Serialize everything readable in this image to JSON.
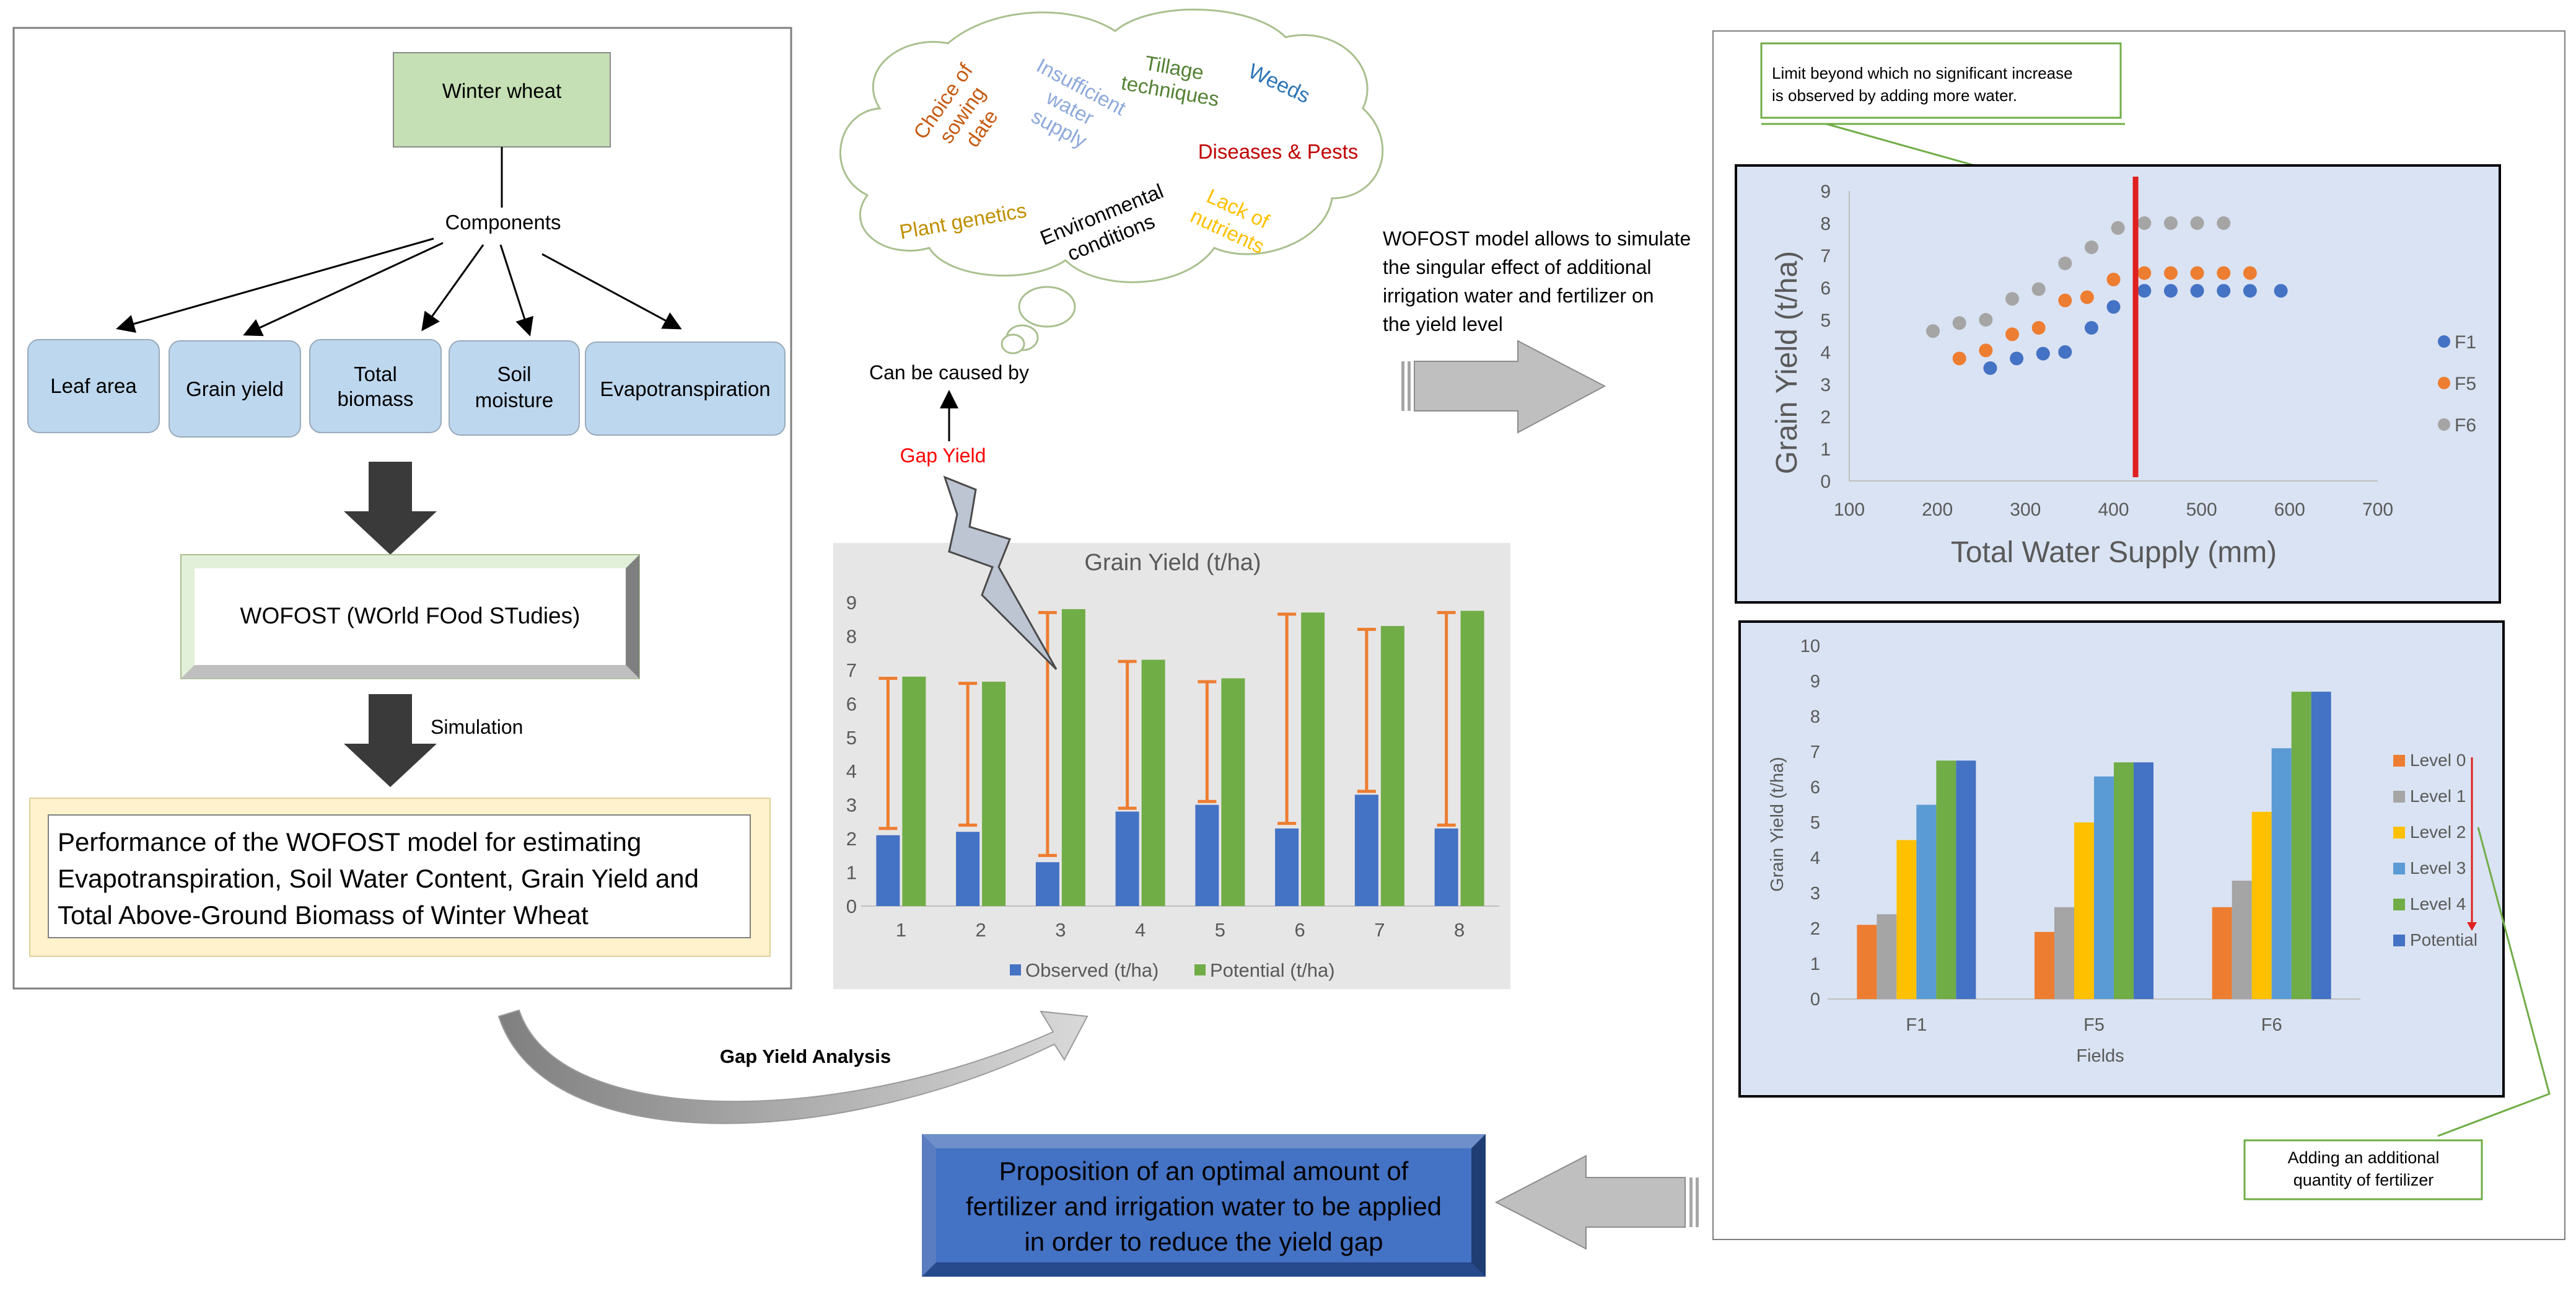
{
  "left_panel": {
    "winter_wheat": "Winter wheat",
    "components": "Components",
    "boxes": [
      "Leaf area",
      "Grain yield",
      "Total\nbiomass",
      "Soil\nmoisture",
      "Evapotranspiration"
    ],
    "wofost": "WOFOST (WOrld FOod STudies)",
    "simulation": "Simulation",
    "performance": [
      "Performance of the WOFOST model for estimating",
      "Evapotranspiration, Soil Water Content, Grain Yield and",
      "Total Above-Ground Biomass of Winter Wheat"
    ]
  },
  "cloud": {
    "words": [
      {
        "text": "Choice of\nsowing\ndate",
        "color": "#C55A11"
      },
      {
        "text": "Insufficient\nwater\nsupply",
        "color": "#8EA9DB"
      },
      {
        "text": "Tillage\ntechniques",
        "color": "#548235"
      },
      {
        "text": "Weeds",
        "color": "#2E75B6"
      },
      {
        "text": "Diseases & Pests",
        "color": "#C00000"
      },
      {
        "text": "Plant genetics",
        "color": "#BF8F00"
      },
      {
        "text": "Environmental\nconditions",
        "color": "#000000"
      },
      {
        "text": "Lack of\nnutrients",
        "color": "#FFC000"
      }
    ],
    "caused_by": "Can be caused by",
    "gap_yield": "Gap Yield",
    "gap_yield_color": "#FF0000"
  },
  "wofost_note": [
    "WOFOST model allows to simulate",
    "the singular effect of additional",
    "irrigation water and fertilizer on",
    "the yield level"
  ],
  "gap_analysis": "Gap Yield Analysis",
  "proposition": [
    "Proposition of an optimal amount of",
    "fertilizer and irrigation water to be applied",
    "in order to reduce the yield gap"
  ],
  "callout_limit": [
    "Limit beyond which no significant increase",
    "is observed by adding more water."
  ],
  "callout_fertilizer": [
    "Adding an additional",
    "quantity of fertilizer"
  ],
  "chart_data": [
    {
      "type": "bar",
      "title": "Grain Yield (t/ha)",
      "categories": [
        "1",
        "2",
        "3",
        "4",
        "5",
        "6",
        "7",
        "8"
      ],
      "ylim": [
        0,
        9
      ],
      "yticks": [
        "0",
        "1",
        "2",
        "3",
        "4",
        "5",
        "6",
        "7",
        "8",
        "9"
      ],
      "series": [
        {
          "name": "Observed (t/ha)",
          "color": "#4472C4",
          "values": [
            2.1,
            2.2,
            1.3,
            2.8,
            3.0,
            2.3,
            3.3,
            2.3
          ]
        },
        {
          "name": "Potential (t/ha)",
          "color": "#70AD47",
          "values": [
            6.8,
            6.65,
            8.8,
            7.3,
            6.75,
            8.7,
            8.3,
            8.75
          ]
        }
      ],
      "error_bars": {
        "color": "#ED7D31",
        "low": [
          2.3,
          2.4,
          1.5,
          2.9,
          3.1,
          2.45,
          3.4,
          2.4
        ],
        "high": [
          6.75,
          6.6,
          8.7,
          7.25,
          6.65,
          8.65,
          8.2,
          8.7
        ]
      }
    },
    {
      "type": "scatter",
      "xlabel": "Total Water Supply (mm)",
      "ylabel": "Grain Yield (t/ha)",
      "xlim": [
        100,
        700
      ],
      "ylim": [
        0,
        9
      ],
      "xticks": [
        "100",
        "200",
        "300",
        "400",
        "500",
        "600",
        "700"
      ],
      "yticks": [
        "0",
        "1",
        "2",
        "3",
        "4",
        "5",
        "6",
        "7",
        "8",
        "9"
      ],
      "limit_line_x": 425,
      "limit_line_color": "#E02020",
      "series": [
        {
          "name": "F1",
          "color": "#4472C4",
          "x": [
            260,
            290,
            320,
            345,
            375,
            400,
            435,
            465,
            495,
            525,
            555,
            590
          ],
          "y": [
            3.5,
            3.8,
            3.95,
            4.0,
            4.75,
            5.4,
            5.9,
            5.9,
            5.9,
            5.9,
            5.9,
            5.9
          ]
        },
        {
          "name": "F5",
          "color": "#ED7D31",
          "x": [
            225,
            255,
            285,
            315,
            345,
            370,
            400,
            435,
            465,
            495,
            525,
            555
          ],
          "y": [
            3.8,
            4.05,
            4.55,
            4.75,
            5.6,
            5.7,
            6.25,
            6.45,
            6.45,
            6.45,
            6.45,
            6.45
          ]
        },
        {
          "name": "F6",
          "color": "#A5A5A5",
          "x": [
            195,
            225,
            255,
            285,
            315,
            345,
            375,
            405,
            435,
            465,
            495,
            525
          ],
          "y": [
            4.65,
            4.9,
            5.0,
            5.65,
            5.95,
            6.75,
            7.25,
            7.85,
            8.0,
            8.0,
            8.0,
            8.0
          ]
        }
      ]
    },
    {
      "type": "bar",
      "xlabel": "Fields",
      "ylabel": "Grain Yield (t/ha)",
      "categories": [
        "F1",
        "F5",
        "F6"
      ],
      "ylim": [
        0,
        10
      ],
      "yticks": [
        "0",
        "1",
        "2",
        "3",
        "4",
        "5",
        "6",
        "7",
        "8",
        "9",
        "10"
      ],
      "series": [
        {
          "name": "Level 0",
          "color": "#ED7D31",
          "values": [
            2.1,
            1.9,
            2.6
          ]
        },
        {
          "name": "Level 1",
          "color": "#A5A5A5",
          "values": [
            2.4,
            2.6,
            3.35
          ]
        },
        {
          "name": "Level 2",
          "color": "#FFC000",
          "values": [
            4.5,
            5.0,
            5.3
          ]
        },
        {
          "name": "Level 3",
          "color": "#5B9BD5",
          "values": [
            5.5,
            6.3,
            7.1
          ]
        },
        {
          "name": "Level 4",
          "color": "#70AD47",
          "values": [
            6.75,
            6.7,
            8.7
          ]
        },
        {
          "name": "Potential",
          "color": "#4472C4",
          "values": [
            6.75,
            6.7,
            8.7
          ]
        }
      ]
    }
  ]
}
